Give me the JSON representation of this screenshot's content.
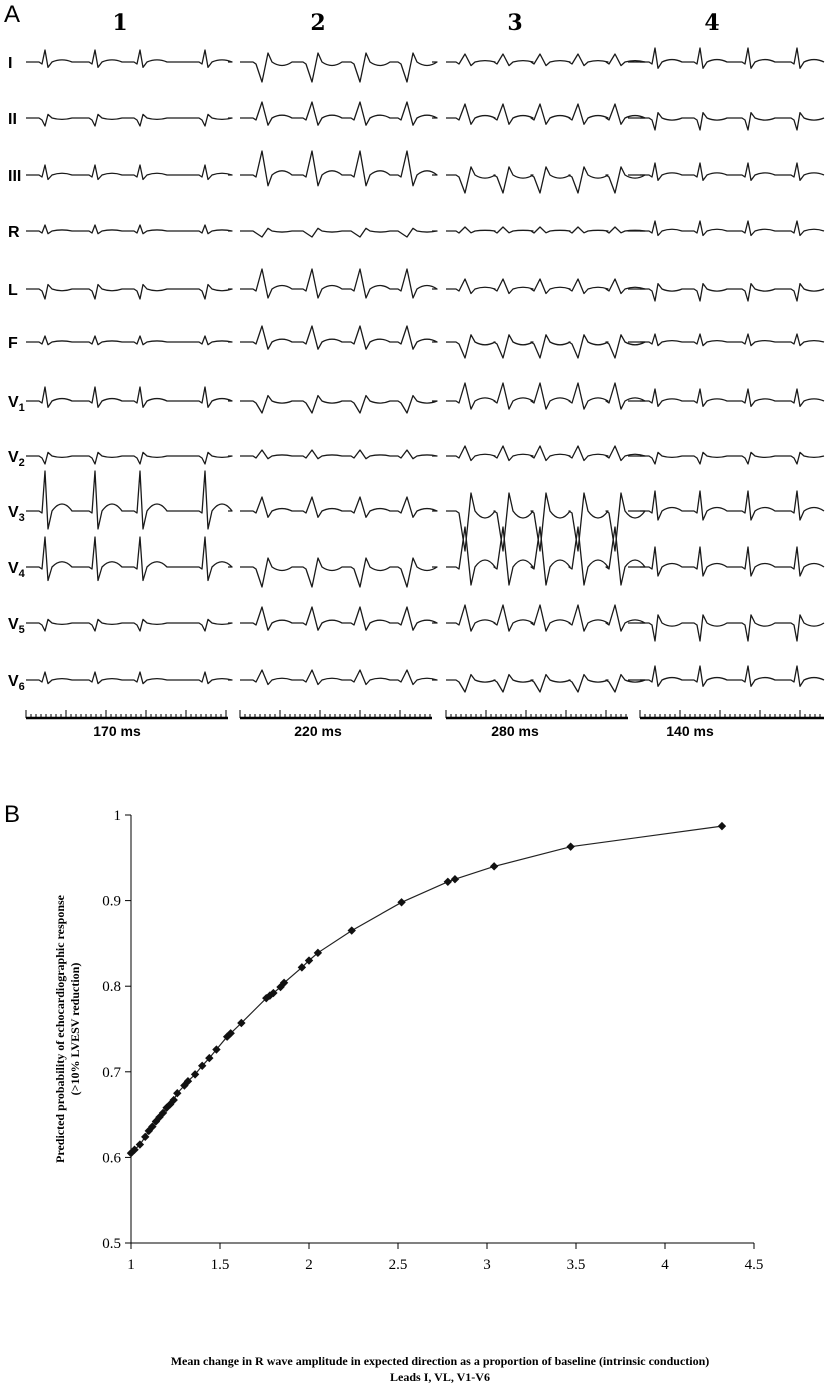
{
  "panel_a": {
    "letter": "A",
    "columns": [
      {
        "number": "1",
        "scale_label": "170 ms"
      },
      {
        "number": "2",
        "scale_label": "220 ms"
      },
      {
        "number": "3",
        "scale_label": "280 ms"
      },
      {
        "number": "4",
        "scale_label": "140 ms"
      }
    ],
    "leads": [
      {
        "main": "I",
        "sub": ""
      },
      {
        "main": "II",
        "sub": ""
      },
      {
        "main": "III",
        "sub": ""
      },
      {
        "main": "R",
        "sub": ""
      },
      {
        "main": "L",
        "sub": ""
      },
      {
        "main": "F",
        "sub": ""
      },
      {
        "main": "V",
        "sub": "1"
      },
      {
        "main": "V",
        "sub": "2"
      },
      {
        "main": "V",
        "sub": "3"
      },
      {
        "main": "V",
        "sub": "4"
      },
      {
        "main": "V",
        "sub": "5"
      },
      {
        "main": "V",
        "sub": "6"
      }
    ]
  },
  "panel_b": {
    "letter": "B",
    "chart_data": {
      "type": "line",
      "title": "",
      "ylabel_lines": [
        "Predicted probability of echocardiographic response",
        "(>10% LVESV reduction)"
      ],
      "xlabel_lines": [
        "Mean change in R wave amplitude in expected direction as a proportion of baseline (intrinsic conduction)",
        "Leads I, VL, V1-V6"
      ],
      "xlim": [
        1,
        4.5
      ],
      "ylim": [
        0.5,
        1
      ],
      "x_ticks": [
        1,
        1.5,
        2,
        2.5,
        3,
        3.5,
        4,
        4.5
      ],
      "x_tick_labels": [
        "1",
        "1.5",
        "2",
        "2.5",
        "3",
        "3.5",
        "4",
        "4.5"
      ],
      "y_ticks": [
        0.5,
        0.6,
        0.7,
        0.8,
        0.9,
        1
      ],
      "y_tick_labels": [
        "0.5",
        "0.6",
        "0.7",
        "0.8",
        "0.9",
        "1"
      ],
      "marker": "diamond",
      "grid": false,
      "series": [
        {
          "x": [
            1.0,
            1.02,
            1.05,
            1.08,
            1.1,
            1.12,
            1.14,
            1.16,
            1.18,
            1.2,
            1.22,
            1.24,
            1.26,
            1.3,
            1.32,
            1.36,
            1.4,
            1.44,
            1.48,
            1.54,
            1.56,
            1.62,
            1.76,
            1.78,
            1.8,
            1.84,
            1.86,
            1.96,
            2.0,
            2.05,
            2.24,
            2.52,
            2.78,
            2.82,
            3.04,
            3.47,
            4.32
          ],
          "y": [
            0.605,
            0.609,
            0.615,
            0.624,
            0.631,
            0.636,
            0.642,
            0.647,
            0.652,
            0.658,
            0.662,
            0.667,
            0.675,
            0.684,
            0.689,
            0.697,
            0.707,
            0.716,
            0.726,
            0.741,
            0.745,
            0.757,
            0.786,
            0.789,
            0.792,
            0.799,
            0.804,
            0.822,
            0.83,
            0.839,
            0.865,
            0.898,
            0.922,
            0.925,
            0.94,
            0.963,
            0.987
          ]
        }
      ]
    }
  }
}
